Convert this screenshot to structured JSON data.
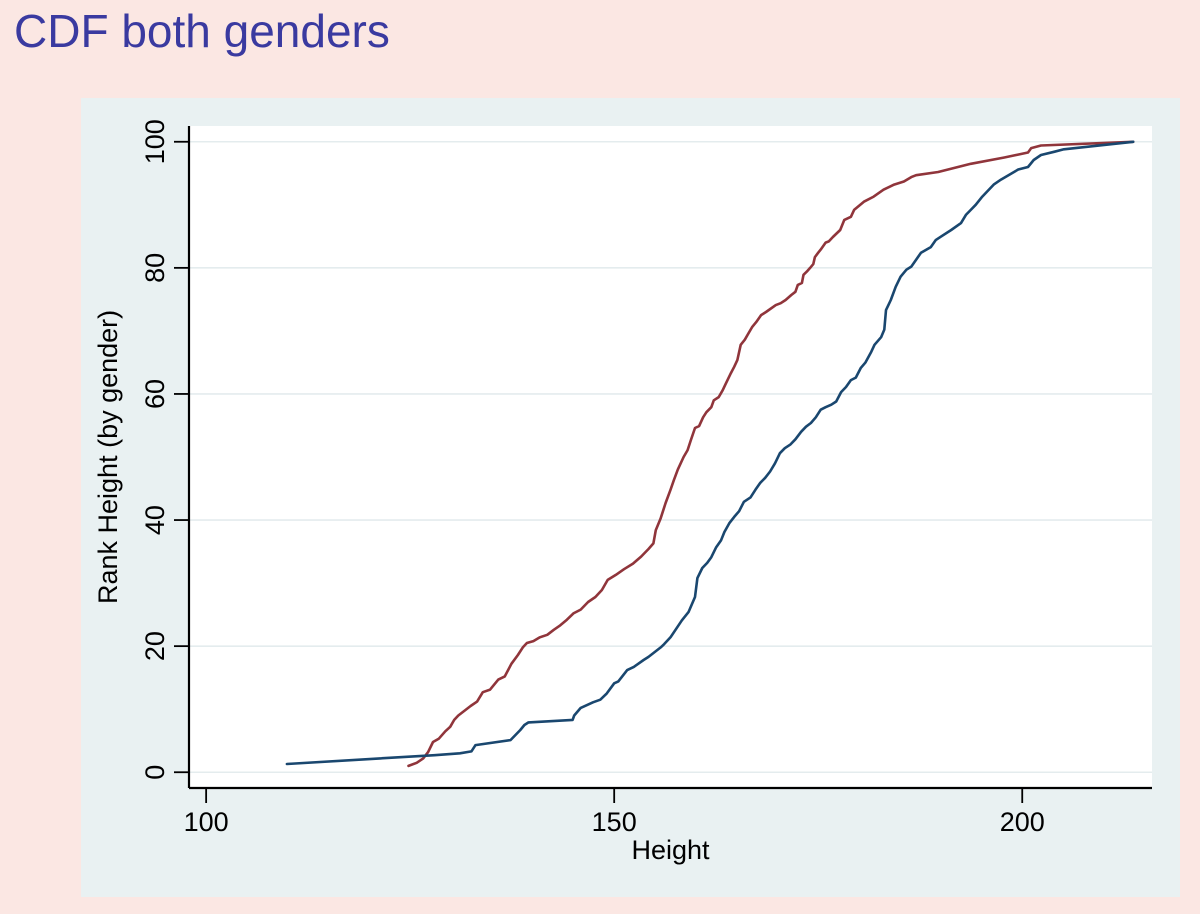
{
  "slide": {
    "title": "CDF both genders"
  },
  "colors": {
    "slide_background": "#FBE7E3",
    "figure_background": "#E9F1F2",
    "plot_background": "#FFFFFF",
    "title_color": "#3A3AA0",
    "grid_color": "#E4ECEE",
    "axis_color": "#000000",
    "maroon": "#90353B",
    "navy": "#1A476F"
  },
  "chart_data": {
    "type": "line",
    "title": "CDF both genders",
    "xlabel": "Height",
    "ylabel": "Rank Height (by gender)",
    "xlim": [
      97.9,
      215.9
    ],
    "ylim": [
      -2.5,
      102.5
    ],
    "x_ticks": [
      100,
      150,
      200
    ],
    "y_ticks": [
      0,
      20,
      40,
      60,
      80,
      100
    ],
    "grid": "horizontal gridlines at y ticks",
    "legend": "none",
    "series": [
      {
        "name": "cdf-line-maroon",
        "color_key": "maroon",
        "points": [
          [
            124.8,
            1
          ],
          [
            125.8,
            1.5
          ],
          [
            126.6,
            2.2
          ],
          [
            127.2,
            3.2
          ],
          [
            127.8,
            4.8
          ],
          [
            128.5,
            5.3
          ],
          [
            129.3,
            6.5
          ],
          [
            129.9,
            7.2
          ],
          [
            130.4,
            8.3
          ],
          [
            130.9,
            9.0
          ],
          [
            131.7,
            9.8
          ],
          [
            132.4,
            10.5
          ],
          [
            133.2,
            11.2
          ],
          [
            133.9,
            12.7
          ],
          [
            134.8,
            13.1
          ],
          [
            135.8,
            14.7
          ],
          [
            136.6,
            15.2
          ],
          [
            137.4,
            17.2
          ],
          [
            138.2,
            18.6
          ],
          [
            138.8,
            19.8
          ],
          [
            139.3,
            20.5
          ],
          [
            140.1,
            20.8
          ],
          [
            140.9,
            21.4
          ],
          [
            141.8,
            21.8
          ],
          [
            142.6,
            22.6
          ],
          [
            143.4,
            23.3
          ],
          [
            144.2,
            24.2
          ],
          [
            145.0,
            25.2
          ],
          [
            145.9,
            25.8
          ],
          [
            146.8,
            27.0
          ],
          [
            147.7,
            27.8
          ],
          [
            148.5,
            28.9
          ],
          [
            149.2,
            30.5
          ],
          [
            150.2,
            31.3
          ],
          [
            151.2,
            32.2
          ],
          [
            152.3,
            33.1
          ],
          [
            153.3,
            34.2
          ],
          [
            154.2,
            35.4
          ],
          [
            154.8,
            36.3
          ],
          [
            155.1,
            38.4
          ],
          [
            155.7,
            40.3
          ],
          [
            156.3,
            42.7
          ],
          [
            156.9,
            44.8
          ],
          [
            157.3,
            46.3
          ],
          [
            157.8,
            48.0
          ],
          [
            158.5,
            50.0
          ],
          [
            159.0,
            51.1
          ],
          [
            159.4,
            52.7
          ],
          [
            159.9,
            54.6
          ],
          [
            160.4,
            54.9
          ],
          [
            160.9,
            56.3
          ],
          [
            161.3,
            57.1
          ],
          [
            161.9,
            57.9
          ],
          [
            162.2,
            59.0
          ],
          [
            162.8,
            59.5
          ],
          [
            163.3,
            60.6
          ],
          [
            163.7,
            61.7
          ],
          [
            164.3,
            63.3
          ],
          [
            164.7,
            64.3
          ],
          [
            165.1,
            65.4
          ],
          [
            165.5,
            67.8
          ],
          [
            166.0,
            68.6
          ],
          [
            166.4,
            69.5
          ],
          [
            166.9,
            70.6
          ],
          [
            167.4,
            71.4
          ],
          [
            168.0,
            72.5
          ],
          [
            168.6,
            73.0
          ],
          [
            169.8,
            74.1
          ],
          [
            170.4,
            74.4
          ],
          [
            171.0,
            74.9
          ],
          [
            171.7,
            75.7
          ],
          [
            172.2,
            76.2
          ],
          [
            172.5,
            77.3
          ],
          [
            173.0,
            77.6
          ],
          [
            173.2,
            78.9
          ],
          [
            173.6,
            79.4
          ],
          [
            174.0,
            80.0
          ],
          [
            174.4,
            80.6
          ],
          [
            174.6,
            81.7
          ],
          [
            175.0,
            82.4
          ],
          [
            175.3,
            82.9
          ],
          [
            175.9,
            84.0
          ],
          [
            176.3,
            84.2
          ],
          [
            176.8,
            84.9
          ],
          [
            177.7,
            86.0
          ],
          [
            178.2,
            87.6
          ],
          [
            179.0,
            88.1
          ],
          [
            179.4,
            89.2
          ],
          [
            180.6,
            90.5
          ],
          [
            181.8,
            91.3
          ],
          [
            183.0,
            92.4
          ],
          [
            184.3,
            93.2
          ],
          [
            185.5,
            93.7
          ],
          [
            186.4,
            94.4
          ],
          [
            187.0,
            94.7
          ],
          [
            189.7,
            95.2
          ],
          [
            193.7,
            96.5
          ],
          [
            197.8,
            97.5
          ],
          [
            200.7,
            98.3
          ],
          [
            201.1,
            99.0
          ],
          [
            202.3,
            99.4
          ],
          [
            213.6,
            100
          ]
        ]
      },
      {
        "name": "cdf-line-navy",
        "color_key": "navy",
        "points": [
          [
            109.9,
            1.3
          ],
          [
            121.3,
            2.2
          ],
          [
            128.0,
            2.7
          ],
          [
            131.1,
            3.0
          ],
          [
            132.5,
            3.3
          ],
          [
            133.0,
            4.3
          ],
          [
            137.3,
            5.1
          ],
          [
            138.5,
            6.7
          ],
          [
            139.0,
            7.5
          ],
          [
            139.5,
            7.9
          ],
          [
            144.9,
            8.3
          ],
          [
            145.1,
            9.0
          ],
          [
            145.9,
            10.2
          ],
          [
            147.4,
            11.1
          ],
          [
            148.3,
            11.5
          ],
          [
            149.1,
            12.5
          ],
          [
            150.0,
            14.1
          ],
          [
            150.5,
            14.4
          ],
          [
            151.6,
            16.2
          ],
          [
            152.4,
            16.7
          ],
          [
            153.6,
            17.8
          ],
          [
            154.2,
            18.3
          ],
          [
            155.7,
            19.8
          ],
          [
            156.1,
            20.3
          ],
          [
            156.9,
            21.4
          ],
          [
            158.3,
            24.1
          ],
          [
            159.1,
            25.4
          ],
          [
            159.9,
            27.8
          ],
          [
            160.2,
            30.8
          ],
          [
            160.8,
            32.4
          ],
          [
            161.4,
            33.2
          ],
          [
            161.9,
            34.1
          ],
          [
            162.5,
            35.7
          ],
          [
            163.1,
            36.8
          ],
          [
            163.5,
            38.1
          ],
          [
            164.1,
            39.5
          ],
          [
            164.7,
            40.5
          ],
          [
            165.3,
            41.4
          ],
          [
            165.9,
            42.9
          ],
          [
            166.7,
            43.6
          ],
          [
            167.3,
            44.8
          ],
          [
            167.9,
            45.9
          ],
          [
            168.5,
            46.7
          ],
          [
            169.1,
            47.7
          ],
          [
            169.7,
            49.0
          ],
          [
            170.3,
            50.6
          ],
          [
            170.9,
            51.4
          ],
          [
            171.6,
            52.0
          ],
          [
            172.2,
            52.8
          ],
          [
            172.9,
            54.0
          ],
          [
            173.5,
            54.8
          ],
          [
            174.1,
            55.4
          ],
          [
            174.7,
            56.3
          ],
          [
            175.3,
            57.5
          ],
          [
            175.9,
            57.9
          ],
          [
            176.6,
            58.3
          ],
          [
            177.2,
            58.8
          ],
          [
            177.8,
            60.3
          ],
          [
            178.4,
            61.1
          ],
          [
            179.0,
            62.2
          ],
          [
            179.6,
            62.6
          ],
          [
            180.2,
            64.1
          ],
          [
            180.8,
            65.0
          ],
          [
            181.5,
            66.7
          ],
          [
            181.9,
            67.8
          ],
          [
            182.7,
            69.0
          ],
          [
            183.1,
            70.2
          ],
          [
            183.3,
            73.3
          ],
          [
            183.9,
            74.9
          ],
          [
            184.5,
            77.0
          ],
          [
            185.1,
            78.6
          ],
          [
            185.8,
            79.7
          ],
          [
            186.4,
            80.2
          ],
          [
            187.0,
            81.3
          ],
          [
            187.6,
            82.4
          ],
          [
            188.8,
            83.3
          ],
          [
            189.4,
            84.4
          ],
          [
            190.1,
            85.0
          ],
          [
            191.3,
            86.0
          ],
          [
            192.5,
            87.1
          ],
          [
            193.1,
            88.4
          ],
          [
            193.7,
            89.2
          ],
          [
            194.3,
            90.0
          ],
          [
            195.1,
            91.3
          ],
          [
            196.5,
            93.2
          ],
          [
            197.4,
            94.0
          ],
          [
            199.5,
            95.6
          ],
          [
            200.7,
            96.0
          ],
          [
            201.4,
            97.1
          ],
          [
            202.3,
            97.9
          ],
          [
            203.9,
            98.4
          ],
          [
            205.1,
            98.8
          ],
          [
            213.6,
            100
          ]
        ]
      }
    ]
  }
}
